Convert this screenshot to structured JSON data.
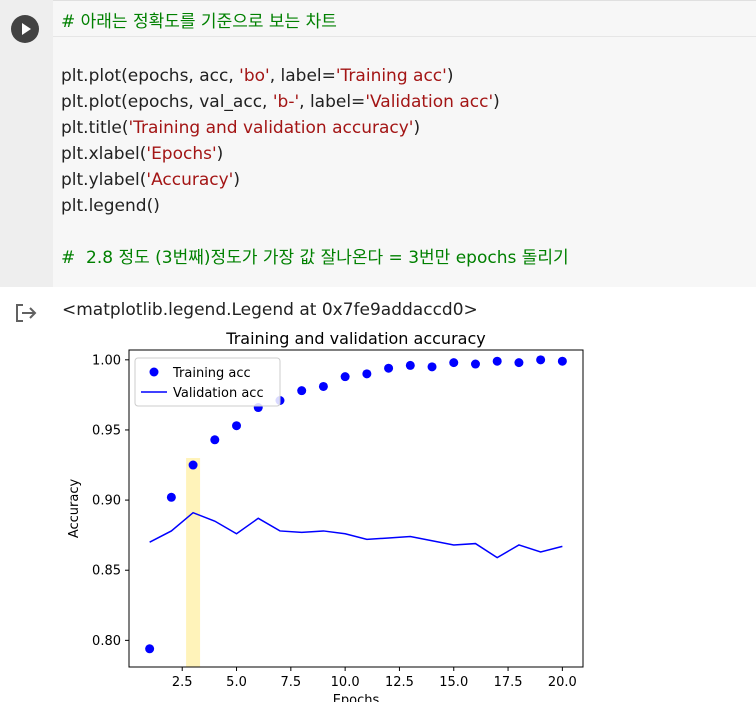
{
  "code_cell": {
    "lines": {
      "l1": {
        "comment": "# 아래는 정확도를 기준으로 보는 차트"
      },
      "l2": {
        "pre": "plt.plot(epochs, acc, ",
        "s1": "'bo'",
        "mid": ", label=",
        "s2": "'Training acc'",
        "post": ")"
      },
      "l3": {
        "pre": "plt.plot(epochs, val_acc, ",
        "s1": "'b-'",
        "mid": ", label=",
        "s2": "'Validation acc'",
        "post": ")"
      },
      "l4": {
        "pre": "plt.title(",
        "s1": "'Training and validation accuracy'",
        "post": ")"
      },
      "l5": {
        "pre": "plt.xlabel(",
        "s1": "'Epochs'",
        "post": ")"
      },
      "l6": {
        "pre": "plt.ylabel(",
        "s1": "'Accuracy'",
        "post": ")"
      },
      "l7": {
        "pre": "plt.legend()"
      },
      "l8": {
        "comment": "#  2.8 정도 (3번째)정도가 가장 값 잘나온다 = 3번만 epochs 돌리기"
      }
    }
  },
  "output": {
    "text": "<matplotlib.legend.Legend at 0x7fe9addaccd0>"
  },
  "chart_data": {
    "type": "line",
    "title": "Training and validation accuracy",
    "xlabel": "Epochs",
    "ylabel": "Accuracy",
    "x": [
      1,
      2,
      3,
      4,
      5,
      6,
      7,
      8,
      9,
      10,
      11,
      12,
      13,
      14,
      15,
      16,
      17,
      18,
      19,
      20
    ],
    "series": [
      {
        "name": "Training acc",
        "style": "points",
        "color": "#0000ff",
        "values": [
          0.794,
          0.902,
          0.925,
          0.943,
          0.953,
          0.966,
          0.971,
          0.978,
          0.981,
          0.988,
          0.99,
          0.994,
          0.996,
          0.995,
          0.998,
          0.997,
          0.999,
          0.998,
          1.0,
          0.999
        ]
      },
      {
        "name": "Validation acc",
        "style": "line",
        "color": "#0000ff",
        "values": [
          0.87,
          0.878,
          0.891,
          0.885,
          0.876,
          0.887,
          0.878,
          0.877,
          0.878,
          0.876,
          0.872,
          0.873,
          0.874,
          0.871,
          0.868,
          0.869,
          0.859,
          0.868,
          0.863,
          0.867
        ]
      }
    ],
    "xlim": [
      0.05,
      20.95
    ],
    "ylim": [
      0.781,
      1.007
    ],
    "xticks": [
      2.5,
      5.0,
      7.5,
      10.0,
      12.5,
      15.0,
      17.5,
      20.0
    ],
    "xtick_labels": [
      "2.5",
      "5.0",
      "7.5",
      "10.0",
      "12.5",
      "15.0",
      "17.5",
      "20.0"
    ],
    "yticks": [
      0.8,
      0.85,
      0.9,
      0.95,
      1.0
    ],
    "ytick_labels": [
      "0.80",
      "0.85",
      "0.90",
      "0.95",
      "1.00"
    ],
    "grid": false,
    "legend_position": "upper-left",
    "highlight": {
      "x": 3,
      "color": "#fff2b3"
    }
  }
}
